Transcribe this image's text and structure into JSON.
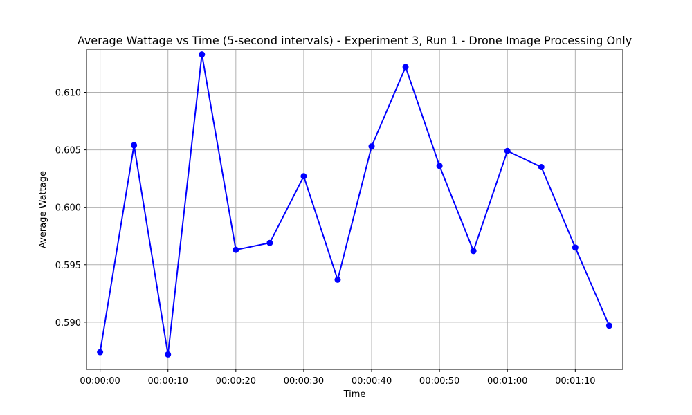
{
  "chart_data": {
    "type": "line",
    "title": "Average Wattage vs Time (5-second intervals)  - Experiment 3, Run 1 - Drone Image Processing Only",
    "xlabel": "Time",
    "ylabel": "Average Wattage",
    "x": [
      "00:00:00",
      "00:00:05",
      "00:00:10",
      "00:00:15",
      "00:00:20",
      "00:00:25",
      "00:00:30",
      "00:00:35",
      "00:00:40",
      "00:00:45",
      "00:00:50",
      "00:00:55",
      "00:01:00",
      "00:01:05",
      "00:01:10",
      "00:01:15"
    ],
    "xticks": [
      "00:00:00",
      "00:00:10",
      "00:00:20",
      "00:00:30",
      "00:00:40",
      "00:00:50",
      "00:01:00",
      "00:01:10"
    ],
    "xlim": [
      "-00:00:02",
      "00:01:17"
    ],
    "series": [
      {
        "values": [
          0.5874,
          0.6054,
          0.5872,
          0.6133,
          0.5963,
          0.5969,
          0.6027,
          0.5937,
          0.6053,
          0.6122,
          0.6036,
          0.5962,
          0.6049,
          0.6035,
          0.5965,
          0.5897
        ],
        "color": "#0000ff",
        "marker": "circle"
      }
    ],
    "yticks": [
      "0.590",
      "0.595",
      "0.600",
      "0.605",
      "0.610"
    ],
    "ylim": [
      0.5859,
      0.6137
    ],
    "grid": true
  }
}
